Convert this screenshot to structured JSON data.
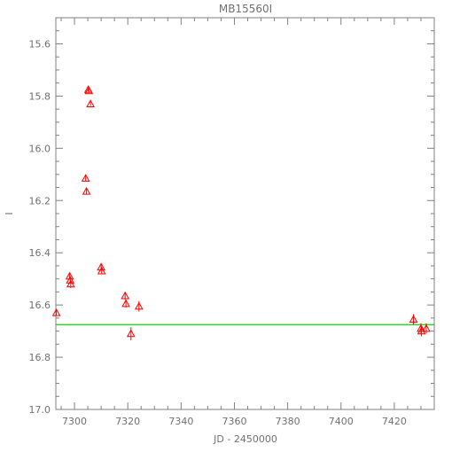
{
  "chart_data": {
    "type": "scatter",
    "title": "MB15560I",
    "xlabel": "JD - 2450000",
    "ylabel": "I",
    "xlim": [
      7293,
      7435
    ],
    "ylim": [
      17.0,
      15.5
    ],
    "y_inverted": true,
    "grid": false,
    "x_ticks": [
      7300,
      7320,
      7340,
      7360,
      7380,
      7400,
      7420
    ],
    "y_ticks": [
      15.6,
      15.8,
      16.0,
      16.2,
      16.4,
      16.6,
      16.8,
      17.0
    ],
    "x_tick_labels": [
      "7300",
      "7320",
      "7340",
      "7360",
      "7380",
      "7400",
      "7420"
    ],
    "y_tick_labels": [
      "15.6",
      "15.8",
      "16.0",
      "16.2",
      "16.4",
      "16.6",
      "16.8",
      "17.0"
    ],
    "series": [
      {
        "marker": "triangle-open",
        "color": "#ff0000",
        "points": [
          {
            "x": 7293.2,
            "y": 16.63,
            "err": 0.01
          },
          {
            "x": 7298.2,
            "y": 16.49,
            "err": 0.012
          },
          {
            "x": 7298.4,
            "y": 16.505,
            "err": 0.012
          },
          {
            "x": 7298.6,
            "y": 16.52,
            "err": 0.015
          },
          {
            "x": 7304.2,
            "y": 16.115,
            "err": 0.01
          },
          {
            "x": 7304.5,
            "y": 16.165,
            "err": 0.01
          },
          {
            "x": 7305.2,
            "y": 15.775,
            "err": 0.008
          },
          {
            "x": 7305.4,
            "y": 15.78,
            "err": 0.008
          },
          {
            "x": 7306.0,
            "y": 15.83,
            "err": 0.008
          },
          {
            "x": 7310.0,
            "y": 16.455,
            "err": 0.01
          },
          {
            "x": 7310.2,
            "y": 16.47,
            "err": 0.01
          },
          {
            "x": 7319.0,
            "y": 16.565,
            "err": 0.015
          },
          {
            "x": 7319.3,
            "y": 16.595,
            "err": 0.015
          },
          {
            "x": 7321.2,
            "y": 16.71,
            "err": 0.025
          },
          {
            "x": 7324.2,
            "y": 16.605,
            "err": 0.02
          },
          {
            "x": 7427.2,
            "y": 16.655,
            "err": 0.02
          },
          {
            "x": 7430.0,
            "y": 16.69,
            "err": 0.02
          },
          {
            "x": 7430.2,
            "y": 16.7,
            "err": 0.02
          },
          {
            "x": 7432.0,
            "y": 16.69,
            "err": 0.02
          }
        ]
      }
    ],
    "model_line": {
      "color": "#00dd00",
      "x": [
        7293,
        7435
      ],
      "y": [
        16.675,
        16.675
      ]
    }
  }
}
